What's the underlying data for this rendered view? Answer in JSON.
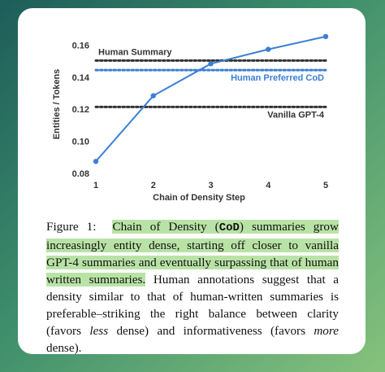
{
  "chart_data": {
    "type": "line",
    "x": [
      1,
      2,
      3,
      4,
      5
    ],
    "series": [
      {
        "color": "#3b7fd6",
        "values": [
          0.088,
          0.129,
          0.149,
          0.158,
          0.166
        ]
      }
    ],
    "reference_lines": [
      {
        "name": "Human Summary",
        "value": 0.151,
        "color": "#333333"
      },
      {
        "name": "Human Preferred CoD",
        "value": 0.145,
        "color": "#3b7fd6"
      },
      {
        "name": "Vanilla GPT-4",
        "value": 0.122,
        "color": "#333333"
      }
    ],
    "xlabel": "Chain of Density Step",
    "ylabel": "Entities / Tokens",
    "xlim": [
      1,
      5
    ],
    "xticks": [
      1,
      2,
      3,
      4,
      5
    ],
    "ylim": [
      0.08,
      0.17
    ],
    "yticks": [
      0.08,
      {
        "value": 0.1,
        "label": "0.10"
      },
      0.12,
      0.14,
      0.16
    ],
    "grid": false
  },
  "caption": {
    "label": "Figure 1:",
    "highlight_start": "Chain of Density (",
    "highlight_code": "CoD",
    "highlight_end": ") summaries grow increasingly entity dense, starting off closer to vanilla GPT-4 summaries and eventually surpassing that of human written summaries.",
    "text_start": " Human annotations suggest that a density similar to that of human-written summaries is preferable–striking the right balance between clarity (favors ",
    "italic_1": "less",
    "text_mid": " dense) and informativeness (favors ",
    "italic_2": "more",
    "text_end": " dense)."
  }
}
